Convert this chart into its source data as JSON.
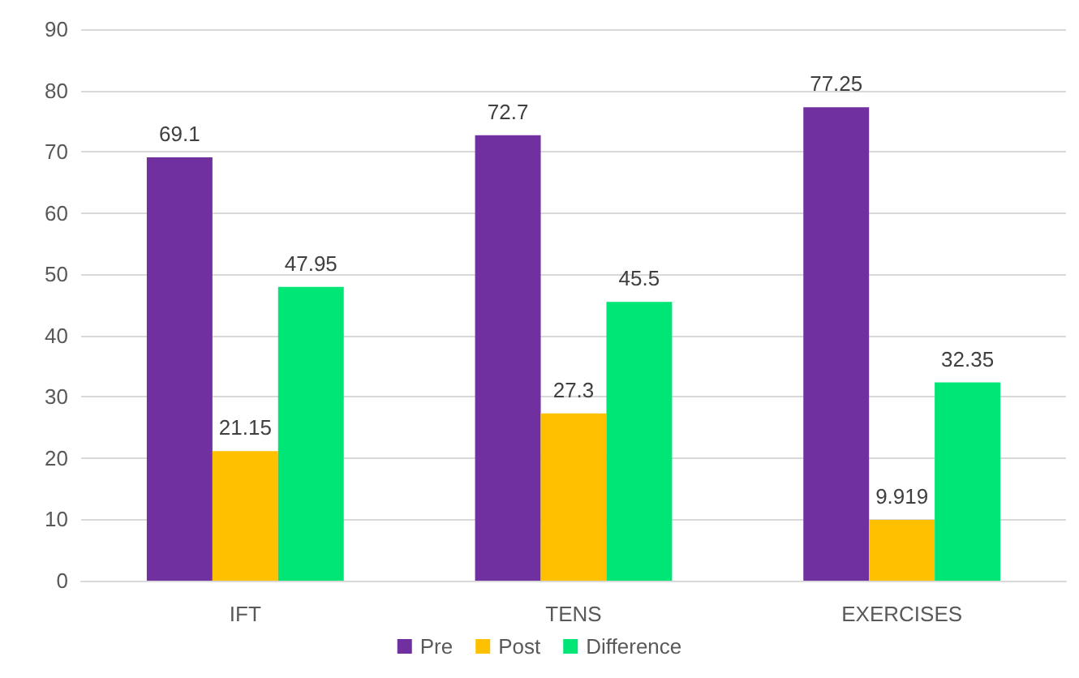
{
  "chart_data": {
    "type": "bar",
    "categories": [
      "IFT",
      "TENS",
      "EXERCISES"
    ],
    "series": [
      {
        "name": "Pre",
        "color": "#7030a0",
        "values": [
          69.1,
          72.7,
          77.25
        ]
      },
      {
        "name": "Post",
        "color": "#ffc000",
        "values": [
          21.15,
          27.3,
          9.919
        ]
      },
      {
        "name": "Difference",
        "color": "#00e676",
        "values": [
          47.95,
          45.5,
          32.35
        ]
      }
    ],
    "ylim": [
      0,
      90
    ],
    "yticks": [
      0,
      10,
      20,
      30,
      40,
      50,
      60,
      70,
      80,
      90
    ],
    "grid": "y",
    "legend": "bottom",
    "data_labels": true
  }
}
